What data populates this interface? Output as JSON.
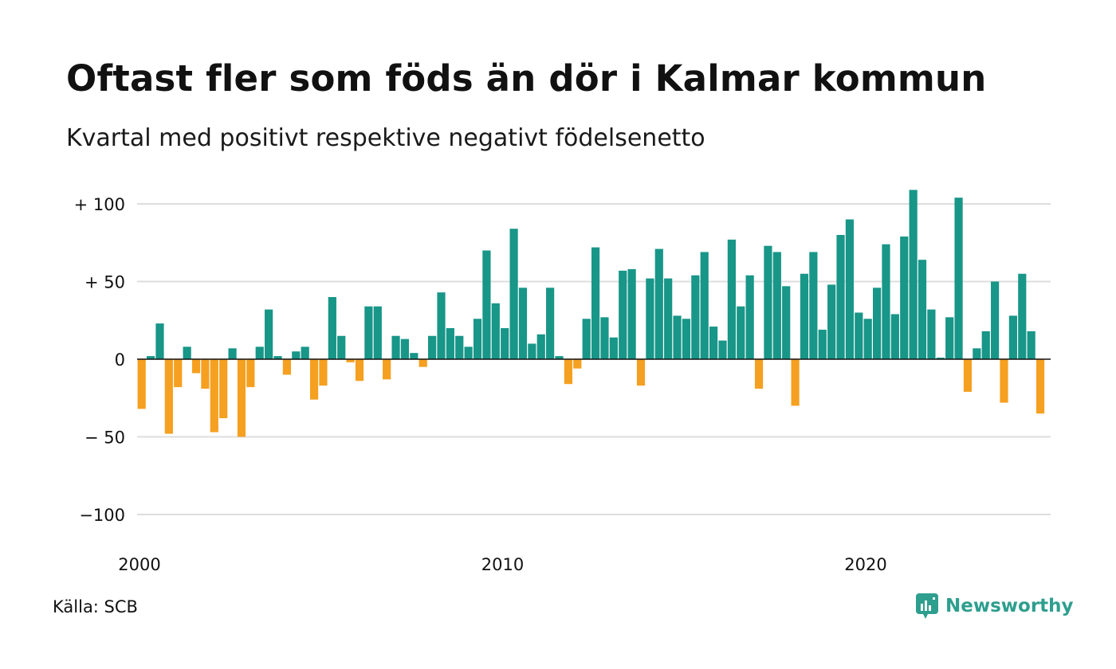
{
  "title": "Oftast fler som föds än dör i Kalmar kommun",
  "subtitle": "Kvartal med positivt respektive negativt födelsenetto",
  "source": "Källa: SCB",
  "brand": {
    "name": "Newsworthy",
    "icon": "newsworthy-logo-icon"
  },
  "colors": {
    "positive": "#189688",
    "negative": "#f5a020",
    "grid": "#dddddd",
    "zero_line": "#111111"
  },
  "chart_data": {
    "type": "bar",
    "title": "Oftast fler som föds än dör i Kalmar kommun",
    "subtitle": "Kvartal med positivt respektive negativt födelsenetto",
    "x_start": 2000,
    "x_step": 0.25,
    "xlim": [
      2000,
      2025
    ],
    "ylim": [
      -100,
      110
    ],
    "yticks": [
      {
        "value": 100,
        "label": "+ 100"
      },
      {
        "value": 50,
        "label": "+  50"
      },
      {
        "value": 0,
        "label": "0"
      },
      {
        "value": -50,
        "label": "− 50"
      },
      {
        "value": -100,
        "label": "−100"
      }
    ],
    "xticks": [
      {
        "value": 2000,
        "label": "2000"
      },
      {
        "value": 2010,
        "label": "2010"
      },
      {
        "value": 2020,
        "label": "2020"
      }
    ],
    "grid": true,
    "values": [
      -32,
      2,
      23,
      -48,
      -18,
      8,
      -9,
      -19,
      -47,
      -38,
      7,
      -50,
      -18,
      8,
      32,
      2,
      -10,
      5,
      8,
      -26,
      -17,
      40,
      15,
      -2,
      -14,
      34,
      34,
      -13,
      15,
      13,
      4,
      -5,
      15,
      43,
      20,
      15,
      8,
      26,
      70,
      36,
      20,
      84,
      46,
      10,
      16,
      46,
      2,
      -16,
      -6,
      26,
      72,
      27,
      14,
      57,
      58,
      -17,
      52,
      71,
      52,
      28,
      26,
      54,
      69,
      21,
      12,
      77,
      34,
      54,
      -19,
      73,
      69,
      47,
      -30,
      55,
      69,
      19,
      48,
      80,
      90,
      30,
      26,
      46,
      74,
      29,
      79,
      109,
      64,
      32,
      1,
      27,
      104,
      -21,
      7,
      18,
      50,
      -28,
      28,
      55,
      18,
      -35
    ]
  }
}
